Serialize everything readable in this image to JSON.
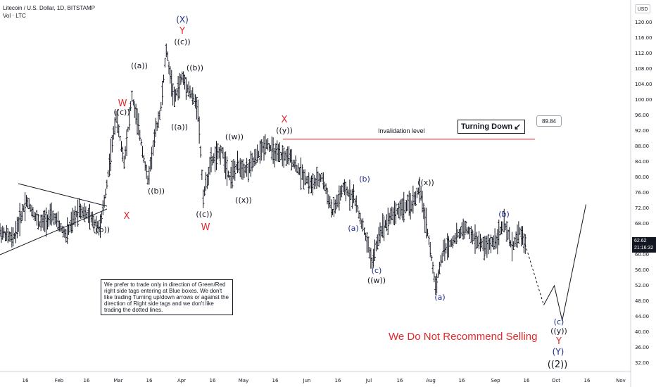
{
  "header": {
    "symbol": "Litecoin / U.S. Dollar, 1D, BITSTAMP",
    "volume": "Vol · LTC"
  },
  "currency": "USD",
  "last_price": {
    "value": "62.62",
    "countdown": "21:16:32"
  },
  "colors": {
    "black": "#131722",
    "red": "#e8262a",
    "blue": "#1f2c8f"
  },
  "price_axis": {
    "min": 30,
    "max": 122,
    "ticks": [
      "32.00",
      "36.00",
      "40.00",
      "44.00",
      "48.00",
      "52.00",
      "56.00",
      "60.00",
      "64.00",
      "68.00",
      "72.00",
      "76.00",
      "80.00",
      "84.00",
      "88.00",
      "92.00",
      "96.00",
      "100.00",
      "104.00",
      "108.00",
      "112.00",
      "116.00",
      "120.00"
    ]
  },
  "time_axis": {
    "labels": [
      "16",
      "Feb",
      "16",
      "Mar",
      "16",
      "Apr",
      "16",
      "May",
      "16",
      "Jun",
      "16",
      "Jul",
      "16",
      "Aug",
      "16",
      "Sep",
      "16",
      "Oct",
      "16",
      "Nov"
    ]
  },
  "chart_data": {
    "type": "line",
    "title": "Litecoin / U.S. Dollar, 1D, BITSTAMP",
    "price_path": [
      {
        "x": 0,
        "y": 66
      },
      {
        "x": 5,
        "y": 64
      },
      {
        "x": 10,
        "y": 74
      },
      {
        "x": 15,
        "y": 68
      },
      {
        "x": 20,
        "y": 70
      },
      {
        "x": 25,
        "y": 65
      },
      {
        "x": 30,
        "y": 72
      },
      {
        "x": 35,
        "y": 69
      },
      {
        "x": 38,
        "y": 67
      },
      {
        "x": 40,
        "y": 76
      },
      {
        "x": 42,
        "y": 86
      },
      {
        "x": 44,
        "y": 96
      },
      {
        "x": 47,
        "y": 84
      },
      {
        "x": 50,
        "y": 101
      },
      {
        "x": 53,
        "y": 91
      },
      {
        "x": 56,
        "y": 79
      },
      {
        "x": 59,
        "y": 92
      },
      {
        "x": 61,
        "y": 98
      },
      {
        "x": 63,
        "y": 113
      },
      {
        "x": 66,
        "y": 100
      },
      {
        "x": 69,
        "y": 106
      },
      {
        "x": 72,
        "y": 102
      },
      {
        "x": 75,
        "y": 98
      },
      {
        "x": 77,
        "y": 75
      },
      {
        "x": 80,
        "y": 84
      },
      {
        "x": 84,
        "y": 87
      },
      {
        "x": 87,
        "y": 80
      },
      {
        "x": 90,
        "y": 83
      },
      {
        "x": 94,
        "y": 82
      },
      {
        "x": 98,
        "y": 86
      },
      {
        "x": 101,
        "y": 89
      },
      {
        "x": 104,
        "y": 86
      },
      {
        "x": 110,
        "y": 85
      },
      {
        "x": 113,
        "y": 82
      },
      {
        "x": 118,
        "y": 78
      },
      {
        "x": 122,
        "y": 80
      },
      {
        "x": 126,
        "y": 71
      },
      {
        "x": 130,
        "y": 77
      },
      {
        "x": 134,
        "y": 75
      },
      {
        "x": 138,
        "y": 66
      },
      {
        "x": 141,
        "y": 58
      },
      {
        "x": 144,
        "y": 66
      },
      {
        "x": 148,
        "y": 70
      },
      {
        "x": 152,
        "y": 72
      },
      {
        "x": 156,
        "y": 73
      },
      {
        "x": 159,
        "y": 77
      },
      {
        "x": 162,
        "y": 66
      },
      {
        "x": 165,
        "y": 52
      },
      {
        "x": 168,
        "y": 61
      },
      {
        "x": 172,
        "y": 64
      },
      {
        "x": 176,
        "y": 67
      },
      {
        "x": 180,
        "y": 64
      },
      {
        "x": 184,
        "y": 62
      },
      {
        "x": 188,
        "y": 64
      },
      {
        "x": 191,
        "y": 68
      },
      {
        "x": 194,
        "y": 62
      },
      {
        "x": 197,
        "y": 66
      },
      {
        "x": 199,
        "y": 62.62
      }
    ],
    "projection": [
      {
        "x": 199,
        "y": 62.62
      },
      {
        "x": 206,
        "y": 47
      },
      {
        "x": 210,
        "y": 52
      },
      {
        "x": 213,
        "y": 43
      },
      {
        "x": 222,
        "y": 73
      }
    ],
    "invalidation_level": 89.84,
    "annotations": [
      "Invalidation level",
      "Turning Down",
      "We Do Not Recommend Selling"
    ]
  },
  "wave_labels": [
    {
      "text": "((b))",
      "color": "black"
    },
    {
      "text": "((c))",
      "color": "black"
    },
    {
      "text": "W",
      "color": "red"
    },
    {
      "text": "X",
      "color": "red"
    },
    {
      "text": "((a))",
      "color": "black"
    },
    {
      "text": "((b))",
      "color": "black"
    },
    {
      "text": "(X)",
      "color": "blue"
    },
    {
      "text": "Y",
      "color": "red"
    },
    {
      "text": "((c))",
      "color": "black"
    },
    {
      "text": "((b))",
      "color": "black"
    },
    {
      "text": "((a))",
      "color": "black"
    },
    {
      "text": "((c))",
      "color": "black"
    },
    {
      "text": "W",
      "color": "red"
    },
    {
      "text": "((w))",
      "color": "black"
    },
    {
      "text": "((x))",
      "color": "black"
    },
    {
      "text": "X",
      "color": "red"
    },
    {
      "text": "((y))",
      "color": "black"
    },
    {
      "text": "(b)",
      "color": "blue"
    },
    {
      "text": "(a)",
      "color": "blue"
    },
    {
      "text": "(c)",
      "color": "blue"
    },
    {
      "text": "((w))",
      "color": "black"
    },
    {
      "text": "((x))",
      "color": "black"
    },
    {
      "text": "(a)",
      "color": "blue"
    },
    {
      "text": "(b)",
      "color": "blue"
    },
    {
      "text": "(c)",
      "color": "blue"
    },
    {
      "text": "((y))",
      "color": "black"
    },
    {
      "text": "Y",
      "color": "red"
    },
    {
      "text": "(Y)",
      "color": "blue"
    },
    {
      "text": "((2))",
      "color": "black"
    }
  ],
  "invalidation_text": "Invalidation level",
  "invalidation_badge": "89.84",
  "turning_down": "Turning Down",
  "warning": "We Do Not Recommend Selling",
  "note": "We prefer to trade only in direction of Green/Red right side tags entering at Blue boxes. We don't like trading Turning up/down arrows or against the direction of Right side tags and we don't like trading the dotted lines."
}
